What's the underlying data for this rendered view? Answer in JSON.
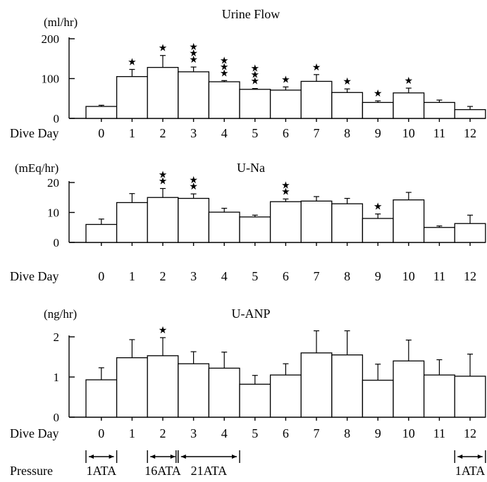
{
  "chart_data": [
    {
      "type": "bar",
      "title": "Urine Flow",
      "ylabel": "(ml/hr)",
      "xlabel": "Dive Day",
      "categories": [
        "0",
        "1",
        "2",
        "3",
        "4",
        "5",
        "6",
        "7",
        "8",
        "9",
        "10",
        "11",
        "12"
      ],
      "values": [
        30,
        105,
        128,
        117,
        92,
        73,
        71,
        93,
        65,
        40,
        64,
        40,
        22
      ],
      "errors": [
        3,
        18,
        30,
        12,
        3,
        2,
        8,
        17,
        9,
        4,
        12,
        6,
        8
      ],
      "significance": [
        "",
        "*",
        "*",
        "***",
        "***",
        "***",
        "*",
        "*",
        "*",
        "*",
        "*",
        "",
        ""
      ],
      "ylim": [
        0,
        200
      ],
      "yticks": [
        0,
        100,
        200
      ]
    },
    {
      "type": "bar",
      "title": "U-Na",
      "ylabel": "(mEq/hr)",
      "xlabel": "Dive Day",
      "categories": [
        "0",
        "1",
        "2",
        "3",
        "4",
        "5",
        "6",
        "7",
        "8",
        "9",
        "10",
        "11",
        "12"
      ],
      "values": [
        6.0,
        13.3,
        15.0,
        14.7,
        10.1,
        8.5,
        13.6,
        13.8,
        12.9,
        8.0,
        14.2,
        5.0,
        6.3
      ],
      "errors": [
        1.8,
        3.0,
        3.0,
        1.5,
        1.3,
        0.6,
        0.9,
        1.5,
        1.8,
        1.5,
        2.5,
        0.5,
        2.8
      ],
      "significance": [
        "",
        "",
        "**",
        "**",
        "",
        "",
        "**",
        "",
        "",
        "*",
        "",
        "",
        ""
      ],
      "ylim": [
        0,
        20
      ],
      "yticks": [
        0,
        10,
        20
      ]
    },
    {
      "type": "bar",
      "title": "U-ANP",
      "ylabel": "(ng/hr)",
      "xlabel": "Dive Day",
      "categories": [
        "0",
        "1",
        "2",
        "3",
        "4",
        "5",
        "6",
        "7",
        "8",
        "9",
        "10",
        "11",
        "12"
      ],
      "values": [
        0.93,
        1.48,
        1.53,
        1.33,
        1.22,
        0.82,
        1.05,
        1.6,
        1.55,
        0.92,
        1.4,
        1.05,
        1.02
      ],
      "errors": [
        0.3,
        0.45,
        0.45,
        0.3,
        0.4,
        0.22,
        0.28,
        0.55,
        0.6,
        0.4,
        0.52,
        0.38,
        0.55
      ],
      "significance": [
        "",
        "",
        "*",
        "",
        "",
        "",
        "",
        "",
        "",
        "",
        "",
        "",
        ""
      ],
      "ylim": [
        0,
        2
      ],
      "yticks": [
        0,
        1,
        2
      ]
    }
  ],
  "pressure": {
    "label": "Pressure",
    "segments": [
      {
        "label": "1ATA",
        "from_day": "0",
        "to_day": "0"
      },
      {
        "label": "16ATA",
        "from_day": "2",
        "to_day": "2"
      },
      {
        "label": "21ATA",
        "from_day": "3",
        "to_day": "4"
      },
      {
        "label": "1ATA",
        "from_day": "12",
        "to_day": "12"
      }
    ]
  }
}
